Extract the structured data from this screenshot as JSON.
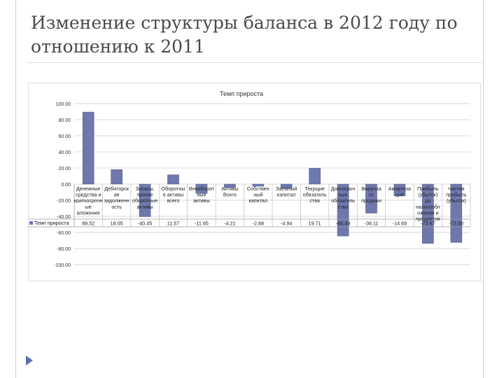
{
  "slide": {
    "title": "Изменение структуры баланса в 2012 году по отношению к 2011"
  },
  "chart_data": {
    "type": "bar",
    "title": "Темп прироста",
    "series": [
      {
        "name": "Темп прироста",
        "color": "#6f78ad",
        "values": [
          89.52,
          18.05,
          -40.45,
          11.57,
          -11.65,
          -4.21,
          -2.68,
          -4.94,
          19.71,
          -64.49,
          -36.11,
          -14.69,
          -73.67,
          -72.5
        ]
      }
    ],
    "categories": [
      [
        "Денежные",
        "средства и",
        "краткосрочн",
        "ые",
        "вложения"
      ],
      [
        "Дебиторск",
        "ая",
        "задолженн",
        "ость"
      ],
      [
        "Запасы,",
        "",
        "прочие",
        "оборотные",
        "активы"
      ],
      [
        "Оборотны",
        "е активы",
        "всего"
      ],
      [
        "Внеоборот",
        "ные",
        "активы"
      ],
      [
        "Активы",
        "Всего"
      ],
      [
        "Собствен",
        "ный",
        "капитал"
      ],
      [
        "Заемный",
        "капитал"
      ],
      [
        "Текущие",
        "обязатель",
        "ства"
      ],
      [
        "Долгосроч",
        "ные",
        "обязатель",
        "ства"
      ],
      [
        "Выручка",
        "от",
        "продажи"
      ],
      [
        "Амортиза",
        "ция"
      ],
      [
        "Прибыль",
        "(убыток)",
        "до",
        "налогообл",
        "ожения и",
        "процентов"
      ],
      [
        "Чистая",
        "прибыль",
        "(убыток)"
      ]
    ],
    "table_values": [
      "89.52",
      "18.05",
      "-40.45",
      "11.57",
      "-11.65",
      "-4.21",
      "-2.68",
      "-4.94",
      "19.71",
      "-64.49",
      "-36.11",
      "-14.69",
      "-73.67",
      "-72.50"
    ],
    "y_ticks": [
      "100.00",
      "80.00",
      "60.00",
      "40.00",
      "20.00",
      "0.00",
      "-20.00",
      "-40.00",
      "-60.00",
      "-80.00",
      "-100.00"
    ],
    "ylim": [
      -100,
      100
    ],
    "grid": true,
    "legend": "data-table"
  }
}
